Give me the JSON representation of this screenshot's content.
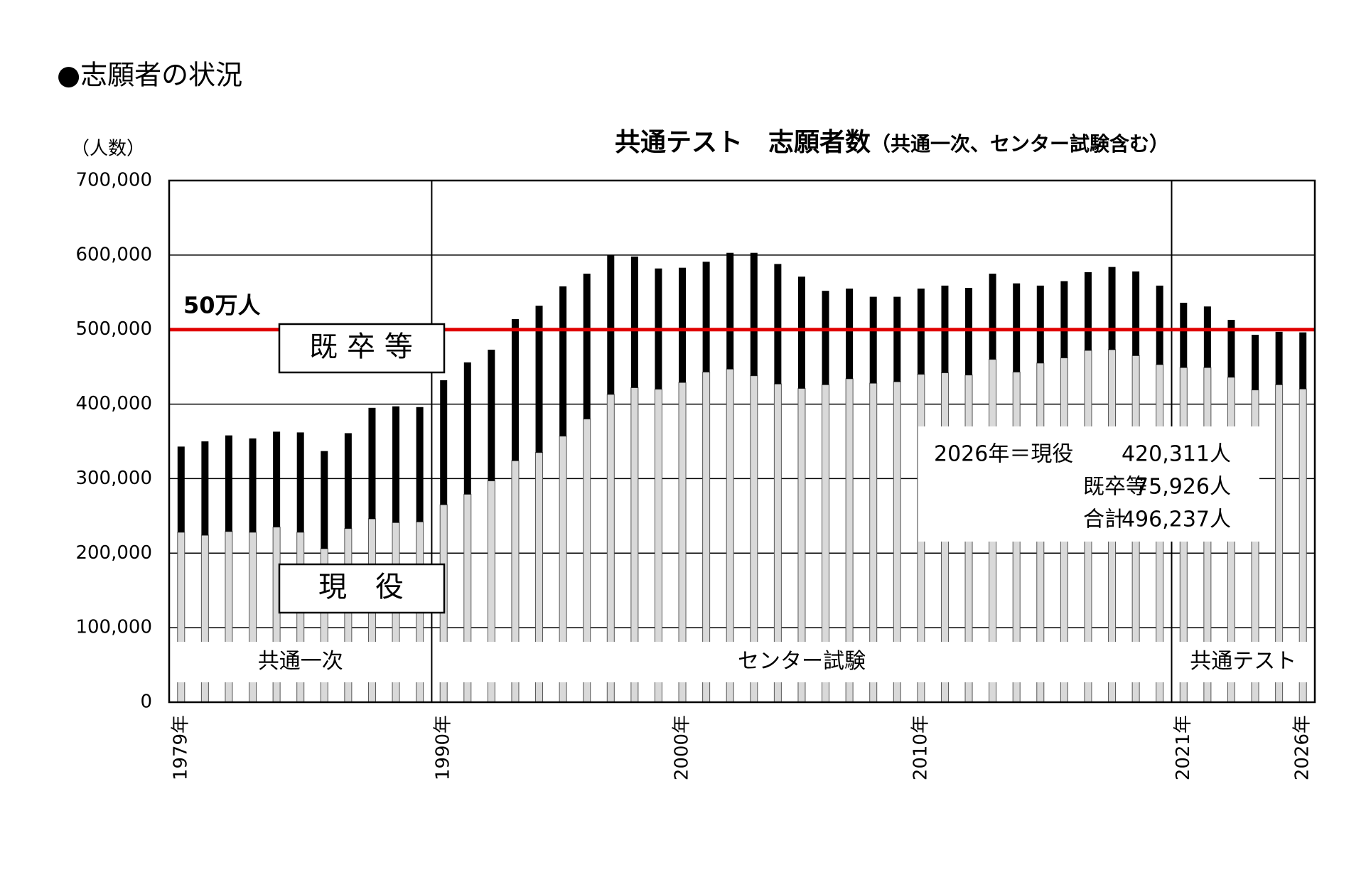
{
  "page_title": "●志願者の状況",
  "chart_data": {
    "type": "stacked_bar",
    "title": "共通テスト　志願者数",
    "subtitle": "（共通一次、センター試験含む）",
    "y_label": "（人数）",
    "categories": [
      "1979年",
      null,
      null,
      null,
      null,
      null,
      null,
      null,
      null,
      null,
      null,
      "1990年",
      null,
      null,
      null,
      null,
      null,
      null,
      null,
      null,
      null,
      "2000年",
      null,
      null,
      null,
      null,
      null,
      null,
      null,
      null,
      null,
      "2010年",
      null,
      null,
      null,
      null,
      null,
      null,
      null,
      null,
      null,
      null,
      "2021年",
      null,
      null,
      null,
      null,
      "2026年"
    ],
    "series": [
      {
        "name": "現　役",
        "color": "#d9d9d9",
        "values": [
          228000,
          224000,
          229000,
          228000,
          235000,
          228000,
          206000,
          233000,
          246000,
          241000,
          242000,
          265000,
          279000,
          297000,
          324000,
          335000,
          357000,
          380000,
          413000,
          422000,
          420000,
          429000,
          443000,
          447000,
          438000,
          427000,
          421000,
          426000,
          434000,
          428000,
          430000,
          440000,
          442000,
          439000,
          460000,
          443000,
          455000,
          462000,
          472000,
          473000,
          465000,
          453000,
          449000,
          449000,
          436000,
          419000,
          426000,
          420311
        ]
      },
      {
        "name": "既 卒 等",
        "color": "#000000",
        "values": [
          115000,
          126000,
          129000,
          126000,
          128000,
          134000,
          131000,
          128000,
          149000,
          156000,
          154000,
          167000,
          177000,
          176000,
          190000,
          197000,
          201000,
          195000,
          187000,
          176000,
          162000,
          154000,
          148000,
          156000,
          165000,
          161000,
          150000,
          126000,
          121000,
          116000,
          114000,
          115000,
          117000,
          117000,
          115000,
          119000,
          104000,
          103000,
          105000,
          111000,
          113000,
          106000,
          87000,
          82000,
          77000,
          74000,
          71000,
          75926
        ]
      }
    ],
    "ylim": [
      0,
      700000
    ],
    "yticks": [
      {
        "value": 0,
        "label": "0"
      },
      {
        "value": 100000,
        "label": "100,000"
      },
      {
        "value": 200000,
        "label": "200,000"
      },
      {
        "value": 300000,
        "label": "300,000"
      },
      {
        "value": 400000,
        "label": "400,000"
      },
      {
        "value": 500000,
        "label": "500,000"
      },
      {
        "value": 600000,
        "label": "600,000"
      },
      {
        "value": 700000,
        "label": "700,000"
      }
    ],
    "grid": true,
    "reference_line": {
      "value": 500000,
      "label": "50万人",
      "color": "#e00000"
    },
    "eras": [
      {
        "label": "共通一次",
        "start": "1979年"
      },
      {
        "label": "センター試験",
        "start": "1990年"
      },
      {
        "label": "共通テスト",
        "start": "2021年"
      }
    ],
    "annotation": [
      [
        "2026年＝現役",
        "420,311人"
      ],
      [
        "既卒等",
        "75,926人"
      ],
      [
        "合計",
        "496,237人"
      ]
    ]
  }
}
